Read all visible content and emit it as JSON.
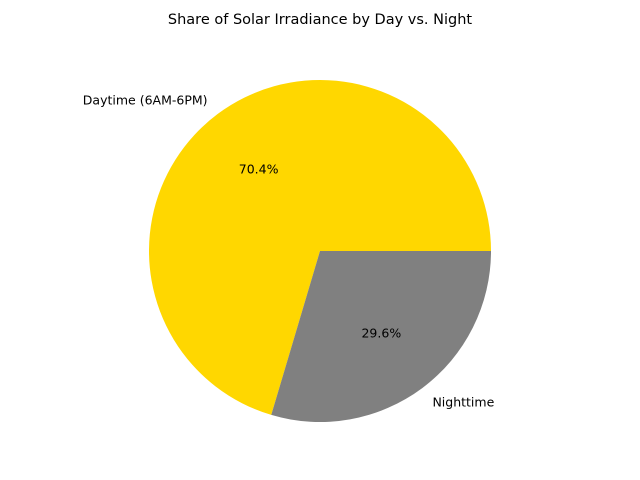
{
  "chart_data": {
    "type": "pie",
    "title": "Share of Solar Irradiance by Day vs. Night",
    "slices": [
      {
        "label": "Daytime (6AM-6PM)",
        "value": 70.4,
        "pct_label": "70.4%",
        "color": "#FFD700"
      },
      {
        "label": "Nighttime",
        "value": 29.6,
        "pct_label": "29.6%",
        "color": "#808080"
      }
    ],
    "start_angle_deg": 0,
    "direction": "counterclockwise",
    "legend": "none"
  }
}
